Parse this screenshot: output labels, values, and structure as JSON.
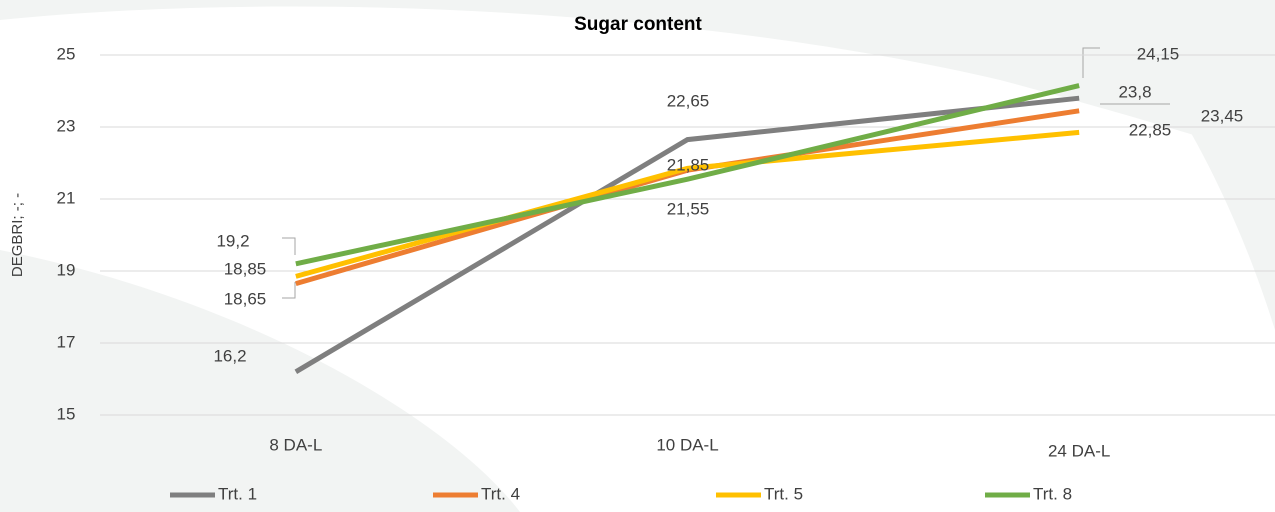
{
  "chart_data": {
    "type": "line",
    "title": "Sugar content",
    "y_label": "DEGBRI; -; -",
    "categories": [
      "8 DA-L",
      "10 DA-L",
      "24 DA-L"
    ],
    "series": [
      {
        "name": "Trt. 1",
        "color": "#7f7f7f",
        "values": [
          16.2,
          22.65,
          23.8
        ],
        "value_labels": [
          "16,2",
          "22,65",
          "23,8"
        ]
      },
      {
        "name": "Trt. 4",
        "color": "#ed7d31",
        "values": [
          18.65,
          21.8,
          23.45
        ],
        "value_labels": [
          "18,65",
          null,
          "23,45"
        ]
      },
      {
        "name": "Trt. 5",
        "color": "#ffc000",
        "values": [
          18.85,
          21.85,
          22.85
        ],
        "value_labels": [
          "18,85",
          "21,85",
          "22,85"
        ]
      },
      {
        "name": "Trt. 8",
        "color": "#70ad47",
        "values": [
          19.2,
          21.55,
          24.15
        ],
        "value_labels": [
          "19,2",
          "21,55",
          "24,15"
        ]
      }
    ],
    "ylim": [
      15,
      25
    ],
    "yticks": [
      15,
      17,
      19,
      21,
      23,
      25
    ],
    "grid": true,
    "legend": "bottom"
  }
}
